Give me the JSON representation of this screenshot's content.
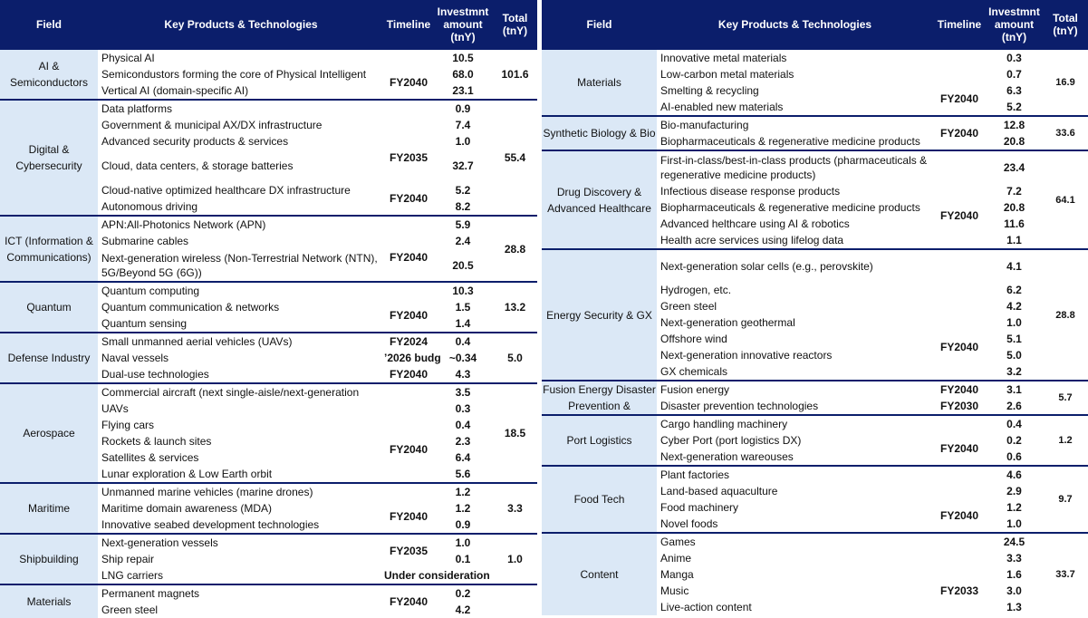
{
  "headers": {
    "field": "Field",
    "products": "Key Products & Technologies",
    "timeline": "Timeline",
    "amount": "Investmnt amount (tnY)",
    "total": "Total (tnY)"
  },
  "left": [
    {
      "field": "AI & Semiconductors",
      "total": "101.6",
      "rows": [
        {
          "p": "Physical AI",
          "a": "10.5"
        },
        {
          "p": "Semicondustors forming the core of Physical Intelligent",
          "a": "68.0",
          "t": "FY2040"
        },
        {
          "p": "Vertical AI (domain-specific AI)",
          "a": "23.1"
        }
      ]
    },
    {
      "field": "Digital & Cybersecurity",
      "total": "55.4",
      "rows": [
        {
          "p": "Data platforms",
          "a": "0.9"
        },
        {
          "p": "Government & municipal AX/DX infrastructure",
          "a": "7.4"
        },
        {
          "p": "Advanced security products & services",
          "a": "1.0",
          "t": "FY2035"
        },
        {
          "p": "Cloud, data centers, & storage batteries",
          "a": "32.7"
        },
        {
          "p": "Cloud-native optimized healthcare DX infrastructure",
          "a": "5.2",
          "t": "FY2040"
        },
        {
          "p": "Autonomous driving",
          "a": "8.2"
        }
      ]
    },
    {
      "field": "ICT (Information & Communications)",
      "total": "28.8",
      "rows": [
        {
          "p": "APN:All-Photonics Network (APN)",
          "a": "5.9"
        },
        {
          "p": "Submarine cables",
          "a": "2.4",
          "t": "FY2040"
        },
        {
          "p": "Next-generation wireless (Non-Terrestrial Network (NTN), 5G/Beyond 5G (6G))",
          "a": "20.5"
        }
      ]
    },
    {
      "field": "Quantum",
      "total": "13.2",
      "rows": [
        {
          "p": "Quantum computing",
          "a": "10.3"
        },
        {
          "p": "Quantum communication & networks",
          "a": "1.5",
          "t": "FY2040"
        },
        {
          "p": "Quantum sensing",
          "a": "1.4"
        }
      ]
    },
    {
      "field": "Defense Industry",
      "total": "5.0",
      "rows": [
        {
          "p": "Small unmanned aerial vehicles (UAVs)",
          "a": "0.4",
          "t": "FY2024"
        },
        {
          "p": "Naval vessels",
          "a": "~0.34",
          "t": "’2026 budg"
        },
        {
          "p": "Dual-use technologies",
          "a": "4.3",
          "t": "FY2040"
        }
      ]
    },
    {
      "field": "Aerospace",
      "total": "18.5",
      "rows": [
        {
          "p": "Commercial aircraft (next single-aisle/next-generation",
          "a": "3.5"
        },
        {
          "p": "UAVs",
          "a": "0.3"
        },
        {
          "p": "Flying cars",
          "a": "0.4",
          "t": "FY2040"
        },
        {
          "p": "Rockets & launch sites",
          "a": "2.3"
        },
        {
          "p": "Satellites & services",
          "a": "6.4"
        },
        {
          "p": "Lunar exploration & Low Earth orbit",
          "a": "5.6"
        }
      ]
    },
    {
      "field": "Maritime",
      "total": "3.3",
      "rows": [
        {
          "p": "Unmanned marine vehicles (marine drones)",
          "a": "1.2"
        },
        {
          "p": "Maritime domain awareness (MDA)",
          "a": "1.2",
          "t": "FY2040"
        },
        {
          "p": "Innovative seabed development technologies",
          "a": "0.9"
        }
      ]
    },
    {
      "field": "Shipbuilding",
      "total": "1.0",
      "rows": [
        {
          "p": "Next-generation vessels",
          "a": "1.0",
          "t": "FY2035"
        },
        {
          "p": "Ship repair",
          "a": "0.1"
        },
        {
          "p": "LNG carriers",
          "a": "",
          "t": "Under consideration"
        }
      ]
    },
    {
      "field": "Materials",
      "total": "",
      "rows": [
        {
          "p": "Permanent magnets",
          "a": "0.2",
          "t": "FY2040"
        },
        {
          "p": "Green steel",
          "a": "4.2"
        }
      ]
    }
  ],
  "right": [
    {
      "field": "Materials",
      "total": "16.9",
      "rows": [
        {
          "p": "Innovative metal materials",
          "a": "0.3"
        },
        {
          "p": "Low-carbon metal materials",
          "a": "0.7"
        },
        {
          "p": "Smelting & recycling",
          "a": "6.3",
          "t": "FY2040"
        },
        {
          "p": "AI-enabled new materials",
          "a": "5.2"
        }
      ]
    },
    {
      "field": "Synthetic Biology & Bio",
      "total": "33.6",
      "rows": [
        {
          "p": "Bio-manufacturing",
          "a": "12.8",
          "t": "FY2040"
        },
        {
          "p": "Biopharmaceuticals & regenerative medicine products",
          "a": "20.8"
        }
      ]
    },
    {
      "field": "Drug Discovery & Advanced Healthcare",
      "total": "64.1",
      "rows": [
        {
          "p": "First-in-class/best-in-class products (pharmaceuticals & regenerative medicine products)",
          "a": "23.4"
        },
        {
          "p": "Infectious disease response products",
          "a": "7.2",
          "t": "FY2040"
        },
        {
          "p": "Biopharmaceuticals & regenerative medicine products",
          "a": "20.8"
        },
        {
          "p": "Advanced helthcare using AI & robotics",
          "a": "11.6"
        },
        {
          "p": "Health acre services using lifelog data",
          "a": "1.1"
        }
      ]
    },
    {
      "field": "Energy Security & GX",
      "total": "28.8",
      "rows": [
        {
          "p": "Next-generation solar cells (e.g., perovskite)",
          "a": "4.1"
        },
        {
          "p": "Hydrogen, etc.",
          "a": "6.2"
        },
        {
          "p": "Green steel",
          "a": "4.2"
        },
        {
          "p": "Next-generation geothermal",
          "a": "1.0",
          "t": "FY2040"
        },
        {
          "p": "Offshore wind",
          "a": "5.1"
        },
        {
          "p": "Next-generation innovative reactors",
          "a": "5.0"
        },
        {
          "p": "GX chemicals",
          "a": "3.2"
        }
      ]
    },
    {
      "field": "Fusion Energy Disaster Prevention &",
      "total": "5.7",
      "rows": [
        {
          "p": "Fusion energy",
          "a": "3.1",
          "t": "FY2040"
        },
        {
          "p": "Disaster prevention technologies",
          "a": "2.6",
          "t": "FY2030"
        }
      ]
    },
    {
      "field": "Port Logistics",
      "total": "1.2",
      "rows": [
        {
          "p": "Cargo handling machinery",
          "a": "0.4"
        },
        {
          "p": "Cyber Port (port logistics DX)",
          "a": "0.2",
          "t": "FY2040"
        },
        {
          "p": "Next-generation wareouses",
          "a": "0.6"
        }
      ]
    },
    {
      "field": "Food Tech",
      "total": "9.7",
      "rows": [
        {
          "p": "Plant factories",
          "a": "4.6"
        },
        {
          "p": "Land-based aquaculture",
          "a": "2.9"
        },
        {
          "p": "Food machinery",
          "a": "1.2",
          "t": "FY2040"
        },
        {
          "p": "Novel foods",
          "a": "1.0"
        }
      ]
    },
    {
      "field": "Content",
      "total": "33.7",
      "rows": [
        {
          "p": "Games",
          "a": "24.5"
        },
        {
          "p": "Anime",
          "a": "3.3"
        },
        {
          "p": "Manga",
          "a": "1.6",
          "t": "FY2033"
        },
        {
          "p": "Music",
          "a": "3.0"
        },
        {
          "p": "Live-action content",
          "a": "1.3"
        }
      ]
    }
  ]
}
